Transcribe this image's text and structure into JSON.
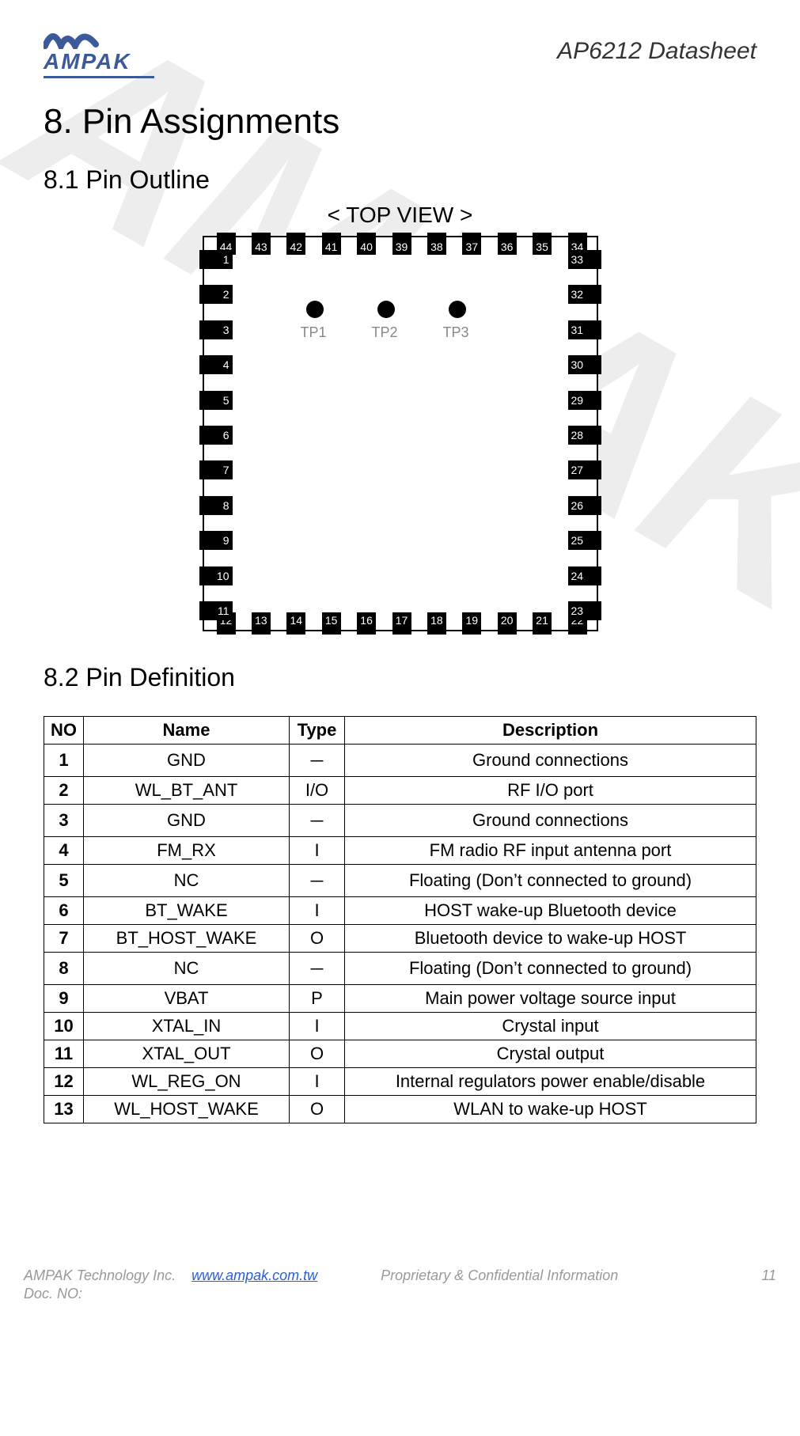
{
  "header": {
    "logo_text": "AMPAK",
    "doc_title": "AP6212  Datasheet"
  },
  "watermark_text": "AMPAK Confidential",
  "section_title": "8. Pin Assignments",
  "subsection_outline": "8.1 Pin Outline",
  "top_view_label": "< TOP VIEW >",
  "subsection_definition": "8.2 Pin Definition",
  "chip": {
    "top_pins": [
      "44",
      "43",
      "42",
      "41",
      "40",
      "39",
      "38",
      "37",
      "36",
      "35",
      "34"
    ],
    "left_pins": [
      "1",
      "2",
      "3",
      "4",
      "5",
      "6",
      "7",
      "8",
      "9",
      "10",
      "11"
    ],
    "right_pins": [
      "33",
      "32",
      "31",
      "30",
      "29",
      "28",
      "27",
      "26",
      "25",
      "24",
      "23"
    ],
    "bottom_pins": [
      "12",
      "13",
      "14",
      "15",
      "16",
      "17",
      "18",
      "19",
      "20",
      "21",
      "22"
    ],
    "test_points": [
      "TP1",
      "TP2",
      "TP3"
    ]
  },
  "table": {
    "headers": {
      "no": "NO",
      "name": "Name",
      "type": "Type",
      "desc": "Description"
    },
    "rows": [
      {
        "no": "1",
        "name": "GND",
        "type": "－",
        "desc": "Ground connections"
      },
      {
        "no": "2",
        "name": "WL_BT_ANT",
        "type": "I/O",
        "desc": "RF I/O port"
      },
      {
        "no": "3",
        "name": "GND",
        "type": "－",
        "desc": "Ground connections"
      },
      {
        "no": "4",
        "name": "FM_RX",
        "type": "I",
        "desc": "FM radio RF input antenna port"
      },
      {
        "no": "5",
        "name": "NC",
        "type": "－",
        "desc": "Floating (Don’t connected to ground)"
      },
      {
        "no": "6",
        "name": "BT_WAKE",
        "type": "I",
        "desc": "HOST wake-up Bluetooth device"
      },
      {
        "no": "7",
        "name": "BT_HOST_WAKE",
        "type": "O",
        "desc": "Bluetooth device to wake-up HOST"
      },
      {
        "no": "8",
        "name": "NC",
        "type": "－",
        "desc": "Floating (Don’t connected to ground)"
      },
      {
        "no": "9",
        "name": "VBAT",
        "type": "P",
        "desc": "Main power voltage source input"
      },
      {
        "no": "10",
        "name": "XTAL_IN",
        "type": "I",
        "desc": "Crystal input"
      },
      {
        "no": "11",
        "name": "XTAL_OUT",
        "type": "O",
        "desc": "Crystal output"
      },
      {
        "no": "12",
        "name": "WL_REG_ON",
        "type": "I",
        "desc": "Internal regulators power enable/disable"
      },
      {
        "no": "13",
        "name": "WL_HOST_WAKE",
        "type": "O",
        "desc": "WLAN to wake-up HOST"
      }
    ]
  },
  "footer": {
    "company": "AMPAK Technology Inc.",
    "url": "www.ampak.com.tw",
    "confidential": "Proprietary & Confidential Information",
    "page_no": "11",
    "doc_no_label": "Doc. NO:"
  }
}
